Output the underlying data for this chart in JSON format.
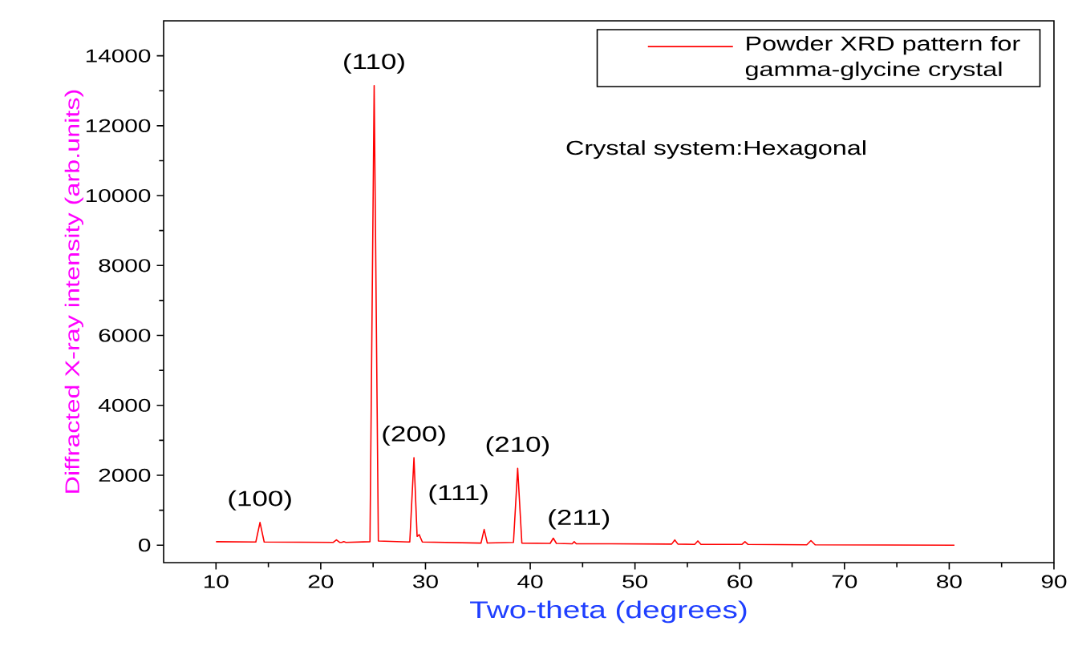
{
  "chart_data": {
    "type": "line",
    "xlabel": "Two-theta (degrees)",
    "ylabel": "Diffracted X-ray intensity (arb.units)",
    "xlim": [
      5,
      90
    ],
    "xticks": [
      10,
      20,
      30,
      40,
      50,
      60,
      70,
      80,
      90
    ],
    "ylim": [
      -500,
      15000
    ],
    "yticks": [
      0,
      2000,
      4000,
      6000,
      8000,
      10000,
      12000,
      14000
    ],
    "legend": "top right",
    "grid": false,
    "series": [
      {
        "name": "Powder XRD pattern for gamma-glycine crystal",
        "color": "#ff0000",
        "x": [
          10,
          13.8,
          14.2,
          14.6,
          21.2,
          21.5,
          21.8,
          22.0,
          22.2,
          22.4,
          24.7,
          25.1,
          25.5,
          28.5,
          28.9,
          29.2,
          29.4,
          29.7,
          35.3,
          35.6,
          35.9,
          38.4,
          38.8,
          39.2,
          41.9,
          42.2,
          42.5,
          44.0,
          44.2,
          44.4,
          47,
          53.5,
          53.8,
          54.1,
          55.7,
          56.0,
          56.3,
          60.2,
          60.5,
          60.8,
          66.4,
          66.8,
          67.2,
          80.5
        ],
        "values": [
          100,
          90,
          650,
          90,
          80,
          150,
          80,
          80,
          100,
          80,
          100,
          13150,
          120,
          90,
          2500,
          250,
          300,
          90,
          60,
          450,
          60,
          80,
          2200,
          60,
          50,
          200,
          50,
          40,
          100,
          40,
          40,
          30,
          150,
          30,
          20,
          120,
          20,
          20,
          100,
          20,
          10,
          130,
          10,
          0
        ]
      }
    ],
    "annotations": [
      {
        "text": "(100)",
        "x": 14.2,
        "y": 650
      },
      {
        "text": "(110)",
        "x": 25.1,
        "y": 13150
      },
      {
        "text": "(200)",
        "x": 28.9,
        "y": 2500
      },
      {
        "text": "(111)",
        "x": 35.6,
        "y": 450
      },
      {
        "text": "(210)",
        "x": 38.8,
        "y": 2200
      },
      {
        "text": "(211)",
        "x": 42.2,
        "y": 200
      },
      "Crystal system:Hexagonal"
    ]
  }
}
